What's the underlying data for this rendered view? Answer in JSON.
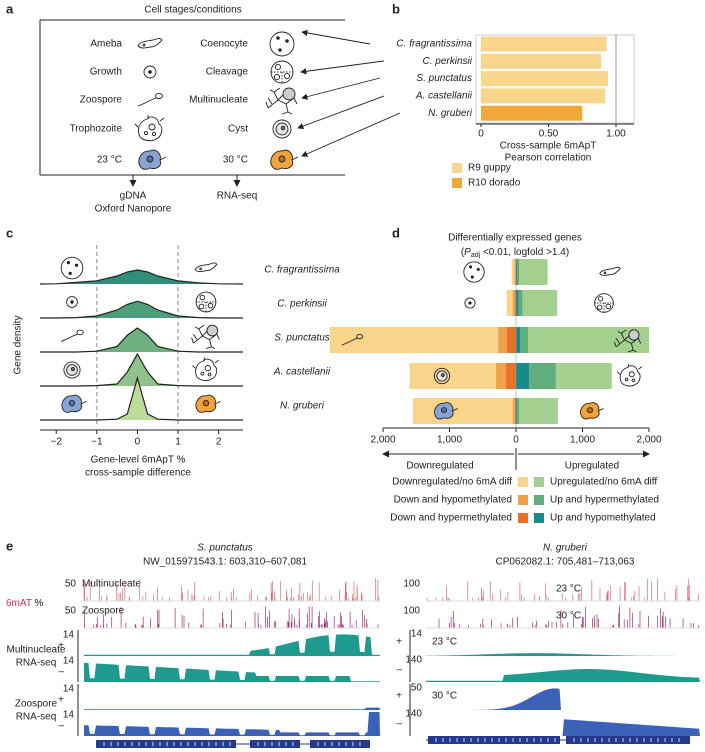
{
  "panel_labels": [
    "a",
    "b",
    "c",
    "d",
    "e"
  ],
  "panel_a": {
    "title": "Cell stages/conditions",
    "left_stages": [
      "Ameba",
      "Growth",
      "Zoospore",
      "Trophozoite",
      "23 °C"
    ],
    "right_stages": [
      "Coenocyte",
      "Cleavage",
      "Multinucleate",
      "Cyst",
      "30 °C"
    ],
    "dna_output": [
      "gDNA",
      "Oxford Nanopore"
    ],
    "rna_output": "RNA-seq"
  },
  "chart_data": [
    {
      "type": "bar",
      "orientation": "horizontal",
      "categories": [
        "C. fragrantissima",
        "C. perkinsii",
        "S. punctatus",
        "A. castellanii",
        "N. gruberi"
      ],
      "series": [
        {
          "name": "R9 guppy",
          "color": "#f9d48b",
          "values": [
            0.93,
            0.89,
            0.94,
            0.92,
            null
          ]
        },
        {
          "name": "R10 dorado",
          "color": "#f2a73a",
          "values": [
            null,
            null,
            null,
            null,
            0.75
          ]
        }
      ],
      "xlim": [
        0,
        1.05
      ],
      "xticks": [
        0,
        {
          "value": 0.5,
          "label": "0.50"
        },
        {
          "value": 1,
          "label": "1.00"
        }
      ],
      "refline": 1,
      "xlabel": [
        "Cross-sample 6mApT",
        "Pearson correlation"
      ]
    },
    {
      "type": "ridgeline",
      "categories": [
        "C. fragrantissima",
        "C. perkinsii",
        "S. punctatus",
        "A. castellanii",
        "N. gruberi"
      ],
      "x": [
        -2.4,
        -2,
        -1.5,
        -1,
        -0.5,
        -0.25,
        0,
        0.25,
        0.5,
        1,
        1.5,
        2,
        2.6
      ],
      "series": [
        {
          "color": "#2f8f77",
          "values": [
            0,
            0.005,
            0.04,
            0.08,
            0.2,
            0.3,
            0.35,
            0.3,
            0.2,
            0.08,
            0.03,
            0.005,
            0
          ]
        },
        {
          "color": "#4e9e7a",
          "values": [
            0,
            0,
            0.01,
            0.05,
            0.2,
            0.34,
            0.42,
            0.34,
            0.2,
            0.05,
            0.01,
            0,
            0
          ]
        },
        {
          "color": "#6cb07f",
          "values": [
            0,
            0,
            0,
            0.02,
            0.14,
            0.42,
            0.6,
            0.42,
            0.14,
            0.02,
            0,
            0,
            0
          ]
        },
        {
          "color": "#8ec28a",
          "values": [
            0,
            0,
            0,
            0.01,
            0.05,
            0.35,
            0.8,
            0.35,
            0.05,
            0.01,
            0,
            0,
            0
          ]
        },
        {
          "color": "#bddc9a",
          "values": [
            0,
            0,
            0,
            0,
            0.02,
            0.15,
            1.05,
            0.15,
            0.02,
            0,
            0,
            0,
            0
          ]
        }
      ],
      "xlim": [
        -2.4,
        2.6
      ],
      "xticks": [
        {
          "value": -2,
          "label": "−2"
        },
        {
          "value": -1,
          "label": "−1"
        },
        0,
        1,
        2
      ],
      "vlines": [
        -1,
        1
      ],
      "xlabel": [
        "Gene-level 6mApT %",
        "cross-sample difference"
      ],
      "ylabel": "Gene density"
    },
    {
      "type": "diverging_bar",
      "title": "Differentially expressed genes",
      "subtitle": [
        "(",
        "P",
        "adj",
        " <0.01, logfold >1.4)"
      ],
      "series": [
        {
          "name": "Downregulated/no 6mA diff",
          "color": "#f9d48b",
          "values": [
            -40,
            -90,
            -2530,
            -1300,
            -1500
          ]
        },
        {
          "name": "Down and hypomethylated",
          "color": "#f0a04a",
          "values": [
            -15,
            -30,
            -130,
            -150,
            -30
          ]
        },
        {
          "name": "Down and hypermethylated",
          "color": "#e6722a",
          "values": [
            -10,
            -20,
            -140,
            -150,
            -20
          ]
        },
        {
          "name": "Upregulated/no 6mA diff",
          "color": "#a3cf8f",
          "values": [
            430,
            520,
            1820,
            840,
            580
          ]
        },
        {
          "name": "Up and hypermethylated",
          "color": "#5fae7c",
          "values": [
            30,
            60,
            120,
            400,
            30
          ]
        },
        {
          "name": "Up and hypomethylated",
          "color": "#188a8c",
          "values": [
            15,
            40,
            60,
            200,
            20
          ]
        }
      ],
      "xlim": [
        -2000,
        2000
      ],
      "xticks": [
        {
          "value": -2000,
          "label": "2,000"
        },
        {
          "value": -1000,
          "label": "1,000"
        },
        0,
        {
          "value": 1000,
          "label": "1,000"
        },
        {
          "value": 2000,
          "label": "2,000"
        }
      ],
      "annotations": [
        "Downregulated",
        "Upregulated"
      ]
    }
  ],
  "panel_e": {
    "strands": [
      "+",
      "–"
    ],
    "left": {
      "species": "S. punctatus",
      "region": "NW_015971543.1: 603,310–607,081",
      "ylabel": [
        "6mAT",
        " %"
      ],
      "meth_tracks": [
        {
          "label": "Multinucleate",
          "max": 50
        },
        {
          "label": "Zoospore",
          "max": 50
        }
      ],
      "rna_tracks": [
        {
          "label": [
            "Multinucleate",
            "RNA-seq"
          ],
          "plus_max": 14,
          "minus_max": 14
        },
        {
          "label": [
            "Zoospore",
            "RNA-seq"
          ],
          "plus_max": 14,
          "minus_max": 14
        }
      ]
    },
    "right": {
      "species": "N. gruberi",
      "region": "CP062082.1: 705,481–713,063",
      "meth_tracks": [
        {
          "label": "23 °C",
          "max": 100
        },
        {
          "label": "30 °C",
          "max": 100
        }
      ],
      "rna_tracks": [
        {
          "label": "23 °C",
          "plus_max": 14,
          "minus_max": 140
        },
        {
          "label": "30 °C",
          "plus_max": 50,
          "minus_max": 140
        }
      ]
    }
  }
}
